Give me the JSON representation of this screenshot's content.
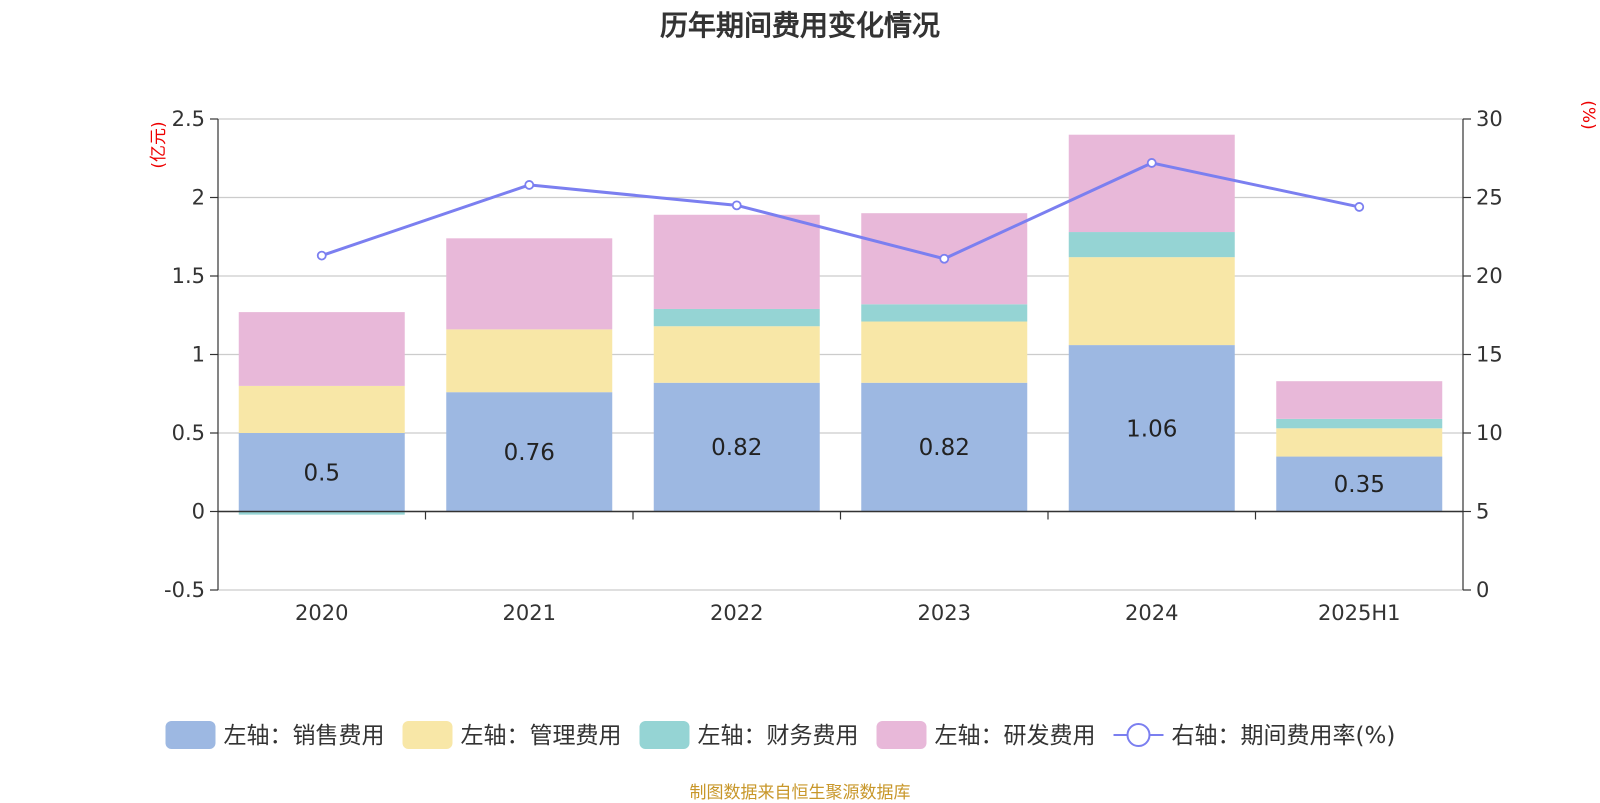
{
  "chart_data": {
    "type": "bar",
    "title": "历年期间费用变化情况",
    "categories": [
      "2020",
      "2021",
      "2022",
      "2023",
      "2024",
      "2025H1"
    ],
    "left_axis": {
      "unit": "(亿元)",
      "ylim": [
        -0.5,
        2.5
      ],
      "ticks": [
        "-0.5",
        "0",
        "0.5",
        "1",
        "1.5",
        "2",
        "2.5"
      ]
    },
    "right_axis": {
      "unit": "(%)",
      "ylim": [
        0,
        30
      ],
      "ticks": [
        "0",
        "5",
        "10",
        "15",
        "20",
        "25",
        "30"
      ]
    },
    "series": [
      {
        "name": "左轴：销售费用",
        "type": "bar",
        "axis": "left",
        "color": "#9db8e2",
        "values": [
          0.5,
          0.76,
          0.82,
          0.82,
          1.06,
          0.35
        ],
        "labels": [
          "0.5",
          "0.76",
          "0.82",
          "0.82",
          "1.06",
          "0.35"
        ]
      },
      {
        "name": "左轴：管理费用",
        "type": "bar",
        "axis": "left",
        "color": "#f8e7a7",
        "values": [
          0.3,
          0.4,
          0.36,
          0.39,
          0.56,
          0.18
        ]
      },
      {
        "name": "左轴：财务费用",
        "type": "bar",
        "axis": "left",
        "color": "#95d4d4",
        "values": [
          -0.02,
          0.0,
          0.11,
          0.11,
          0.16,
          0.06
        ]
      },
      {
        "name": "左轴：研发费用",
        "type": "bar",
        "axis": "left",
        "color": "#e8b8d9",
        "values": [
          0.47,
          0.58,
          0.6,
          0.58,
          0.62,
          0.24
        ]
      },
      {
        "name": "右轴：期间费用率(%)",
        "type": "line",
        "axis": "right",
        "color": "#7b7ff0",
        "values": [
          21.3,
          25.8,
          24.5,
          21.1,
          27.2,
          24.4
        ]
      }
    ],
    "grid": true,
    "legend_position": "bottom"
  },
  "footer": {
    "source": "制图数据来自恒生聚源数据库"
  }
}
